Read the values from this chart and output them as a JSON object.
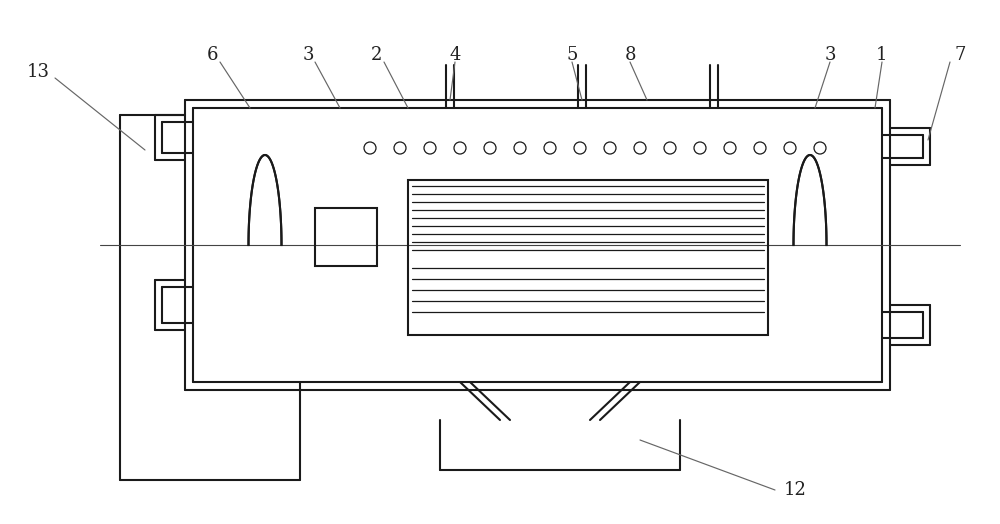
{
  "bg_color": "#ffffff",
  "line_color": "#1a1a1a",
  "lw": 1.5,
  "lw_thin": 0.9,
  "fig_width": 10.0,
  "fig_height": 5.24,
  "dpi": 100
}
